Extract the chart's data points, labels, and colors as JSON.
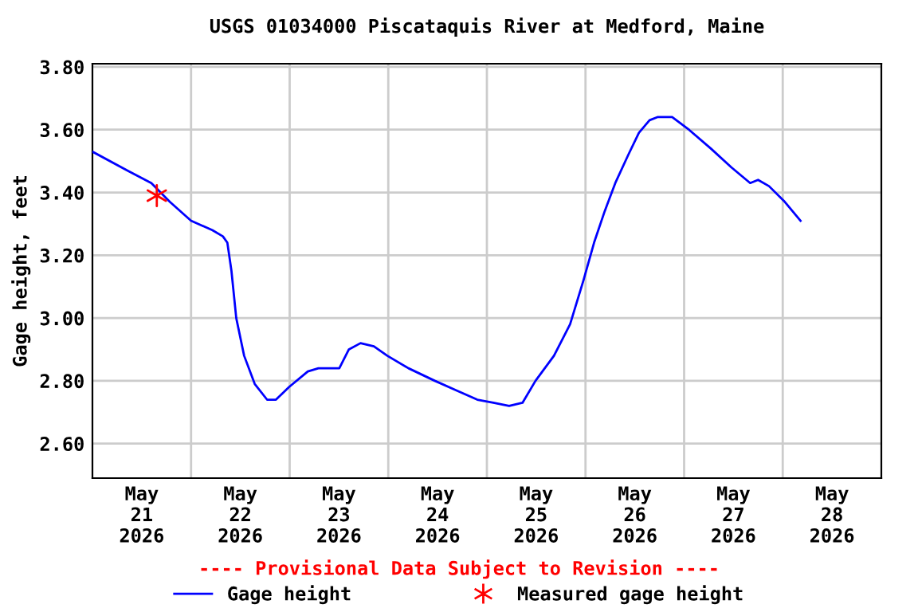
{
  "chart_data": {
    "type": "line",
    "title": "USGS 01034000 Piscataquis River at Medford, Maine",
    "ylabel": "Gage height, feet",
    "annotations": [
      "---- Provisional Data Subject to Revision ----"
    ],
    "series": [
      {
        "name": "Gage height",
        "color": "#0000ff",
        "marker": "none",
        "x": [
          "2026-05-21T00:00",
          "2026-05-21T08:30",
          "2026-05-21T14:20",
          "2026-05-21T18:50",
          "2026-05-22T00:00",
          "2026-05-22T05:10",
          "2026-05-22T07:45",
          "2026-05-22T08:50",
          "2026-05-22T09:50",
          "2026-05-22T11:00",
          "2026-05-22T12:55",
          "2026-05-22T15:30",
          "2026-05-22T18:30",
          "2026-05-22T20:40",
          "2026-05-22T23:50",
          "2026-05-23T04:25",
          "2026-05-23T07:00",
          "2026-05-23T12:05",
          "2026-05-23T14:25",
          "2026-05-23T17:15",
          "2026-05-23T20:30",
          "2026-05-23T23:45",
          "2026-05-24T04:55",
          "2026-05-24T11:20",
          "2026-05-24T16:30",
          "2026-05-24T21:40",
          "2026-05-25T01:35",
          "2026-05-25T05:25",
          "2026-05-25T08:40",
          "2026-05-25T11:50",
          "2026-05-25T16:20",
          "2026-05-25T20:15",
          "2026-05-25T23:30",
          "2026-05-26T02:05",
          "2026-05-26T04:40",
          "2026-05-26T07:15",
          "2026-05-26T10:25",
          "2026-05-26T13:00",
          "2026-05-26T15:35",
          "2026-05-26T17:30",
          "2026-05-26T21:05",
          "2026-05-27T01:10",
          "2026-05-27T06:30",
          "2026-05-27T11:30",
          "2026-05-27T16:05",
          "2026-05-27T18:00",
          "2026-05-27T20:40",
          "2026-05-28T00:30",
          "2026-05-28T04:20"
        ],
        "values": [
          3.53,
          3.47,
          3.43,
          3.37,
          3.31,
          3.28,
          3.26,
          3.24,
          3.15,
          3.0,
          2.88,
          2.79,
          2.74,
          2.74,
          2.78,
          2.83,
          2.84,
          2.84,
          2.9,
          2.92,
          2.91,
          2.88,
          2.84,
          2.8,
          2.77,
          2.74,
          2.73,
          2.72,
          2.73,
          2.8,
          2.88,
          2.98,
          3.12,
          3.24,
          3.34,
          3.43,
          3.52,
          3.59,
          3.63,
          3.64,
          3.64,
          3.6,
          3.54,
          3.48,
          3.43,
          3.44,
          3.42,
          3.37,
          3.31
        ]
      },
      {
        "name": "Measured gage height",
        "type": "scatter",
        "color": "#ff0000",
        "marker": "cross",
        "x": [
          "2026-05-21T15:40"
        ],
        "values": [
          3.39
        ]
      }
    ],
    "xlim": [
      "2026-05-21T00:00",
      "2026-05-29T00:00"
    ],
    "xticks": [
      {
        "value": "2026-05-21T12:00",
        "label": "May\n21\n2026"
      },
      {
        "value": "2026-05-22T12:00",
        "label": "May\n22\n2026"
      },
      {
        "value": "2026-05-23T12:00",
        "label": "May\n23\n2026"
      },
      {
        "value": "2026-05-24T12:00",
        "label": "May\n24\n2026"
      },
      {
        "value": "2026-05-25T12:00",
        "label": "May\n25\n2026"
      },
      {
        "value": "2026-05-26T12:00",
        "label": "May\n26\n2026"
      },
      {
        "value": "2026-05-27T12:00",
        "label": "May\n27\n2026"
      },
      {
        "value": "2026-05-28T12:00",
        "label": "May\n28\n2026"
      },
      {
        "value": "2026-05-22T00:00",
        "label": null
      },
      {
        "value": "2026-05-23T00:00",
        "label": null
      },
      {
        "value": "2026-05-24T00:00",
        "label": null
      },
      {
        "value": "2026-05-25T00:00",
        "label": null
      },
      {
        "value": "2026-05-26T00:00",
        "label": null
      },
      {
        "value": "2026-05-27T00:00",
        "label": null
      },
      {
        "value": "2026-05-28T00:00",
        "label": null
      }
    ],
    "ylim": [
      2.49,
      3.81
    ],
    "yticks": [
      {
        "value": 2.6,
        "label": "2.60"
      },
      {
        "value": 2.8,
        "label": "2.80"
      },
      {
        "value": 3.0,
        "label": "3.00"
      },
      {
        "value": 3.2,
        "label": "3.20"
      },
      {
        "value": 3.4,
        "label": "3.40"
      },
      {
        "value": 3.6,
        "label": "3.60"
      },
      {
        "value": 3.8,
        "label": "3.80"
      }
    ],
    "grid": true,
    "legend": "bottom"
  }
}
